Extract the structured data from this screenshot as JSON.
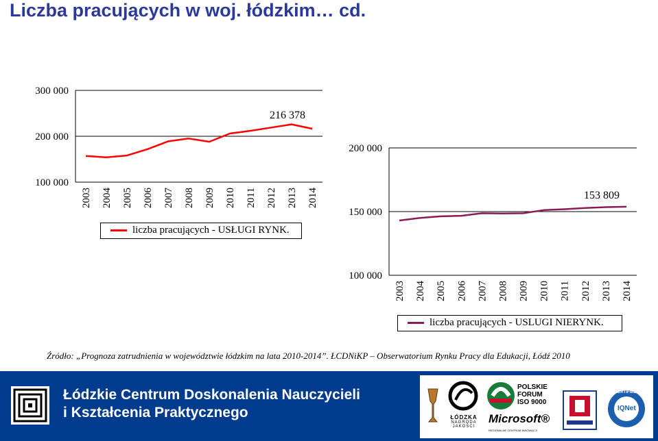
{
  "page_title": "Liczba pracujących w woj. łódzkim…  cd.",
  "source_note": "Źródło: „Prognoza zatrudnienia w województwie łódzkim na lata 2010-2014”. ŁCDNiKP – Obserwatorium Rynku Pracy dla Edukacji, Łódź 2010",
  "chart_data": [
    {
      "type": "line",
      "title": "",
      "x": [
        "2003",
        "2004",
        "2005",
        "2006",
        "2007",
        "2008",
        "2009",
        "2010",
        "2011",
        "2012",
        "2013",
        "2014"
      ],
      "series": [
        {
          "name": "liczba pracujących - USŁUGI RYNK.",
          "color": "#ff0000",
          "values": [
            157000,
            154000,
            158000,
            172000,
            189000,
            195000,
            188000,
            206000,
            212000,
            219000,
            226000,
            216378
          ]
        }
      ],
      "ylim": [
        100000,
        300000
      ],
      "yticks": [
        100000,
        200000,
        300000
      ],
      "ytick_labels": [
        "100 000",
        "200 000",
        "300 000"
      ],
      "data_label": "216 378",
      "grid": "horizontal",
      "legend": "bottom"
    },
    {
      "type": "line",
      "title": "",
      "x": [
        "2003",
        "2004",
        "2005",
        "2006",
        "2007",
        "2008",
        "2009",
        "2010",
        "2011",
        "2012",
        "2013",
        "2014"
      ],
      "series": [
        {
          "name": "liczba pracujących - USLUGI NIERYNK.",
          "color": "#8b1a55",
          "values": [
            143000,
            145000,
            146300,
            146700,
            148700,
            148500,
            148700,
            151200,
            151900,
            152800,
            153500,
            153809
          ]
        }
      ],
      "ylim": [
        100000,
        200000
      ],
      "yticks": [
        100000,
        150000,
        200000
      ],
      "ytick_labels": [
        "100 000",
        "150 000",
        "200 000"
      ],
      "data_label": "153 809",
      "grid": "horizontal",
      "legend": "bottom"
    }
  ],
  "footer": {
    "org_line1": "Łódzkie Centrum Doskonalenia Nauczycieli",
    "org_line2": "i Kształcenia Praktycznego",
    "logo_texts": {
      "lodzka_line1": "ŁÓDZKA",
      "lodzka_line2": "NAGRODA",
      "lodzka_line3": "JAKOŚCI",
      "pfj_line1": "POLSKIE",
      "pfj_line2": "FORUM",
      "pfj_line3": "ISO 9000",
      "microsoft": "Microsoft®",
      "microsoft_sub": "REGIONALNE CENTRUM INNOWACJI",
      "cert_label": "CERTIFIED",
      "iqnet": "IQNet"
    }
  }
}
